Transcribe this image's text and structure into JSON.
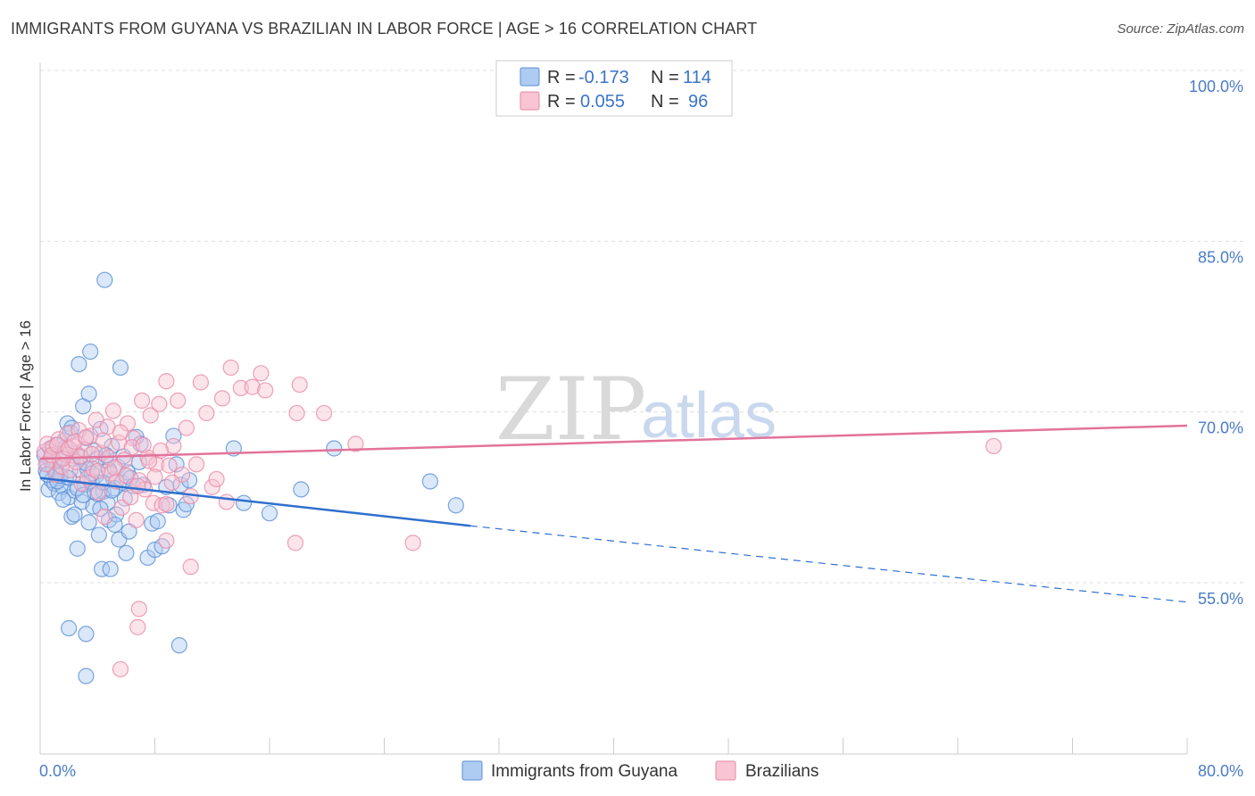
{
  "header": {
    "title": "IMMIGRANTS FROM GUYANA VS BRAZILIAN IN LABOR FORCE | AGE > 16 CORRELATION CHART",
    "source": "Source: ZipAtlas.com"
  },
  "watermark": {
    "zip": "ZIP",
    "atlas": "atlas"
  },
  "legend": {
    "r_label": "R =",
    "n_label": "N =",
    "rows": [
      {
        "r": "-0.173",
        "n": "114",
        "fill": "#aecbf2",
        "stroke": "#5b8fd6"
      },
      {
        "r": "0.055",
        "n": "96",
        "fill": "#f9c4d3",
        "stroke": "#e88aa6"
      }
    ]
  },
  "colors": {
    "blue_fill": "#aecbf2",
    "blue_stroke": "#5b8fd6",
    "blue_line": "#2f6fcf",
    "pink_fill": "#f9c4d3",
    "pink_stroke": "#e88aa6",
    "pink_line": "#e2739a",
    "grid": "#dddddd",
    "axis_text": "#4a7cc9"
  },
  "chart_data": {
    "type": "scatter",
    "title": "IMMIGRANTS FROM GUYANA VS BRAZILIAN IN LABOR FORCE | AGE > 16 CORRELATION CHART",
    "xlabel": "",
    "ylabel": "In Labor Force | Age > 16",
    "xlim": [
      0,
      80
    ],
    "ylim": [
      42,
      102
    ],
    "x_tick_labels": [
      "0.0%",
      "80.0%"
    ],
    "y_ticks": [
      55,
      70,
      85,
      100
    ],
    "y_tick_labels": [
      "55.0%",
      "70.0%",
      "85.0%",
      "100.0%"
    ],
    "grid": true,
    "legend_position": "top-center",
    "series": [
      {
        "name": "Immigrants from Guyana",
        "color": "#aecbf2",
        "trend": {
          "x": [
            0,
            30
          ],
          "y": [
            64.2,
            60.0
          ],
          "dashed_to": [
            80,
            53.3
          ]
        },
        "points": [
          [
            0.3,
            66.2
          ],
          [
            0.4,
            64.8
          ],
          [
            0.5,
            65.5
          ],
          [
            0.6,
            63.2
          ],
          [
            0.7,
            66.8
          ],
          [
            0.8,
            64.0
          ],
          [
            0.9,
            65.1
          ],
          [
            1.0,
            63.7
          ],
          [
            1.1,
            67.1
          ],
          [
            1.2,
            64.6
          ],
          [
            1.3,
            62.9
          ],
          [
            1.4,
            66.0
          ],
          [
            1.5,
            65.3
          ],
          [
            1.6,
            63.4
          ],
          [
            1.7,
            67.5
          ],
          [
            1.8,
            64.3
          ],
          [
            1.9,
            69.0
          ],
          [
            2.0,
            62.5
          ],
          [
            2.1,
            68.2
          ],
          [
            2.2,
            60.8
          ],
          [
            2.3,
            65.9
          ],
          [
            2.4,
            63.1
          ],
          [
            2.5,
            66.4
          ],
          [
            2.6,
            58.0
          ],
          [
            2.7,
            74.2
          ],
          [
            2.8,
            64.9
          ],
          [
            2.9,
            62.1
          ],
          [
            3.0,
            70.5
          ],
          [
            3.1,
            63.6
          ],
          [
            3.2,
            67.7
          ],
          [
            3.3,
            65.0
          ],
          [
            3.4,
            71.6
          ],
          [
            3.5,
            75.3
          ],
          [
            3.6,
            63.9
          ],
          [
            3.7,
            61.7
          ],
          [
            3.8,
            66.6
          ],
          [
            3.9,
            64.4
          ],
          [
            4.0,
            62.8
          ],
          [
            4.1,
            59.2
          ],
          [
            4.2,
            68.5
          ],
          [
            4.3,
            56.2
          ],
          [
            4.4,
            63.0
          ],
          [
            4.5,
            81.6
          ],
          [
            4.6,
            65.7
          ],
          [
            4.7,
            62.0
          ],
          [
            4.8,
            60.5
          ],
          [
            4.9,
            56.2
          ],
          [
            5.0,
            67.0
          ],
          [
            5.1,
            64.1
          ],
          [
            5.2,
            63.3
          ],
          [
            5.3,
            61.0
          ],
          [
            5.4,
            65.2
          ],
          [
            5.5,
            58.8
          ],
          [
            5.6,
            73.9
          ],
          [
            5.7,
            63.8
          ],
          [
            5.8,
            66.1
          ],
          [
            5.9,
            62.4
          ],
          [
            6.0,
            57.6
          ],
          [
            6.1,
            64.7
          ],
          [
            6.2,
            59.5
          ],
          [
            6.3,
            64.2
          ],
          [
            6.5,
            63.5
          ],
          [
            6.7,
            67.8
          ],
          [
            6.9,
            65.6
          ],
          [
            7.0,
            67.2
          ],
          [
            7.2,
            63.6
          ],
          [
            7.5,
            57.2
          ],
          [
            7.8,
            60.2
          ],
          [
            8.0,
            57.9
          ],
          [
            8.2,
            60.4
          ],
          [
            8.5,
            58.2
          ],
          [
            8.8,
            63.4
          ],
          [
            9.0,
            61.8
          ],
          [
            9.3,
            67.9
          ],
          [
            9.5,
            65.4
          ],
          [
            9.7,
            49.5
          ],
          [
            9.8,
            63.6
          ],
          [
            10.0,
            61.4
          ],
          [
            10.2,
            61.9
          ],
          [
            10.4,
            64.0
          ],
          [
            2.0,
            51.0
          ],
          [
            3.2,
            50.5
          ],
          [
            3.2,
            46.8
          ],
          [
            13.5,
            66.8
          ],
          [
            14.2,
            62.0
          ],
          [
            16.0,
            61.1
          ],
          [
            18.2,
            63.2
          ],
          [
            20.5,
            66.8
          ],
          [
            27.2,
            63.9
          ],
          [
            29.0,
            61.8
          ],
          [
            0.5,
            64.5
          ],
          [
            0.8,
            66.0
          ],
          [
            1.0,
            65.7
          ],
          [
            1.2,
            63.9
          ],
          [
            1.4,
            64.4
          ],
          [
            1.6,
            62.3
          ],
          [
            1.8,
            66.9
          ],
          [
            2.0,
            64.2
          ],
          [
            2.2,
            68.6
          ],
          [
            2.4,
            61.0
          ],
          [
            2.6,
            63.3
          ],
          [
            2.8,
            66.0
          ],
          [
            3.0,
            62.7
          ],
          [
            3.2,
            65.5
          ],
          [
            3.4,
            60.3
          ],
          [
            3.6,
            64.6
          ],
          [
            3.8,
            63.0
          ],
          [
            4.0,
            65.9
          ],
          [
            4.2,
            61.5
          ],
          [
            4.4,
            63.8
          ],
          [
            4.6,
            66.2
          ],
          [
            4.8,
            64.9
          ],
          [
            5.0,
            63.1
          ],
          [
            5.2,
            60.1
          ]
        ]
      },
      {
        "name": "Brazilians",
        "color": "#f9c4d3",
        "trend": {
          "x": [
            0,
            80
          ],
          "y": [
            65.9,
            68.8
          ]
        },
        "points": [
          [
            0.3,
            66.5
          ],
          [
            0.5,
            67.2
          ],
          [
            0.7,
            65.8
          ],
          [
            0.9,
            66.9
          ],
          [
            1.1,
            64.5
          ],
          [
            1.3,
            67.6
          ],
          [
            1.5,
            65.2
          ],
          [
            1.7,
            66.3
          ],
          [
            1.9,
            68.1
          ],
          [
            2.1,
            64.9
          ],
          [
            2.3,
            67.0
          ],
          [
            2.5,
            65.6
          ],
          [
            2.7,
            68.4
          ],
          [
            2.9,
            63.7
          ],
          [
            3.1,
            66.7
          ],
          [
            3.3,
            64.2
          ],
          [
            3.5,
            67.9
          ],
          [
            3.7,
            65.0
          ],
          [
            3.9,
            69.3
          ],
          [
            4.1,
            62.9
          ],
          [
            4.3,
            66.4
          ],
          [
            4.5,
            60.8
          ],
          [
            4.7,
            68.7
          ],
          [
            4.9,
            64.6
          ],
          [
            5.1,
            70.1
          ],
          [
            5.3,
            63.9
          ],
          [
            5.5,
            67.3
          ],
          [
            5.7,
            61.6
          ],
          [
            5.9,
            65.8
          ],
          [
            6.1,
            69.0
          ],
          [
            6.3,
            62.5
          ],
          [
            6.5,
            67.7
          ],
          [
            6.7,
            60.5
          ],
          [
            6.9,
            64.0
          ],
          [
            7.1,
            71.0
          ],
          [
            7.3,
            63.2
          ],
          [
            7.5,
            66.0
          ],
          [
            7.7,
            69.7
          ],
          [
            7.9,
            62.0
          ],
          [
            8.1,
            65.4
          ],
          [
            8.3,
            70.7
          ],
          [
            8.5,
            61.8
          ],
          [
            8.8,
            72.7
          ],
          [
            9.0,
            65.3
          ],
          [
            9.3,
            67.0
          ],
          [
            9.6,
            71.0
          ],
          [
            9.9,
            64.5
          ],
          [
            10.2,
            68.6
          ],
          [
            10.5,
            62.6
          ],
          [
            10.9,
            65.4
          ],
          [
            11.2,
            72.6
          ],
          [
            11.6,
            69.9
          ],
          [
            12.0,
            63.4
          ],
          [
            12.3,
            64.1
          ],
          [
            12.7,
            71.2
          ],
          [
            13.0,
            62.1
          ],
          [
            13.3,
            73.9
          ],
          [
            14.0,
            72.1
          ],
          [
            14.8,
            72.2
          ],
          [
            15.4,
            73.4
          ],
          [
            15.7,
            71.9
          ],
          [
            17.9,
            69.9
          ],
          [
            18.1,
            72.4
          ],
          [
            19.8,
            69.9
          ],
          [
            22.0,
            67.2
          ],
          [
            6.9,
            52.7
          ],
          [
            6.8,
            51.1
          ],
          [
            5.6,
            47.4
          ],
          [
            8.8,
            58.7
          ],
          [
            10.5,
            56.4
          ],
          [
            17.8,
            58.5
          ],
          [
            26.0,
            58.5
          ],
          [
            66.5,
            67.0
          ],
          [
            0.4,
            65.4
          ],
          [
            0.8,
            66.2
          ],
          [
            1.2,
            67.1
          ],
          [
            1.6,
            65.9
          ],
          [
            2.0,
            66.8
          ],
          [
            2.4,
            67.4
          ],
          [
            2.8,
            66.1
          ],
          [
            3.2,
            67.8
          ],
          [
            3.6,
            66.3
          ],
          [
            4.0,
            64.8
          ],
          [
            4.4,
            67.5
          ],
          [
            4.8,
            66.0
          ],
          [
            5.2,
            65.1
          ],
          [
            5.6,
            68.2
          ],
          [
            6.0,
            64.4
          ],
          [
            6.4,
            66.9
          ],
          [
            6.8,
            63.5
          ],
          [
            7.2,
            67.1
          ],
          [
            7.6,
            65.7
          ],
          [
            8.0,
            64.3
          ],
          [
            8.4,
            66.6
          ],
          [
            8.8,
            61.9
          ],
          [
            9.2,
            63.8
          ]
        ]
      }
    ]
  },
  "bottom_legend": [
    {
      "label": "Immigrants from Guyana"
    },
    {
      "label": "Brazilians"
    }
  ]
}
